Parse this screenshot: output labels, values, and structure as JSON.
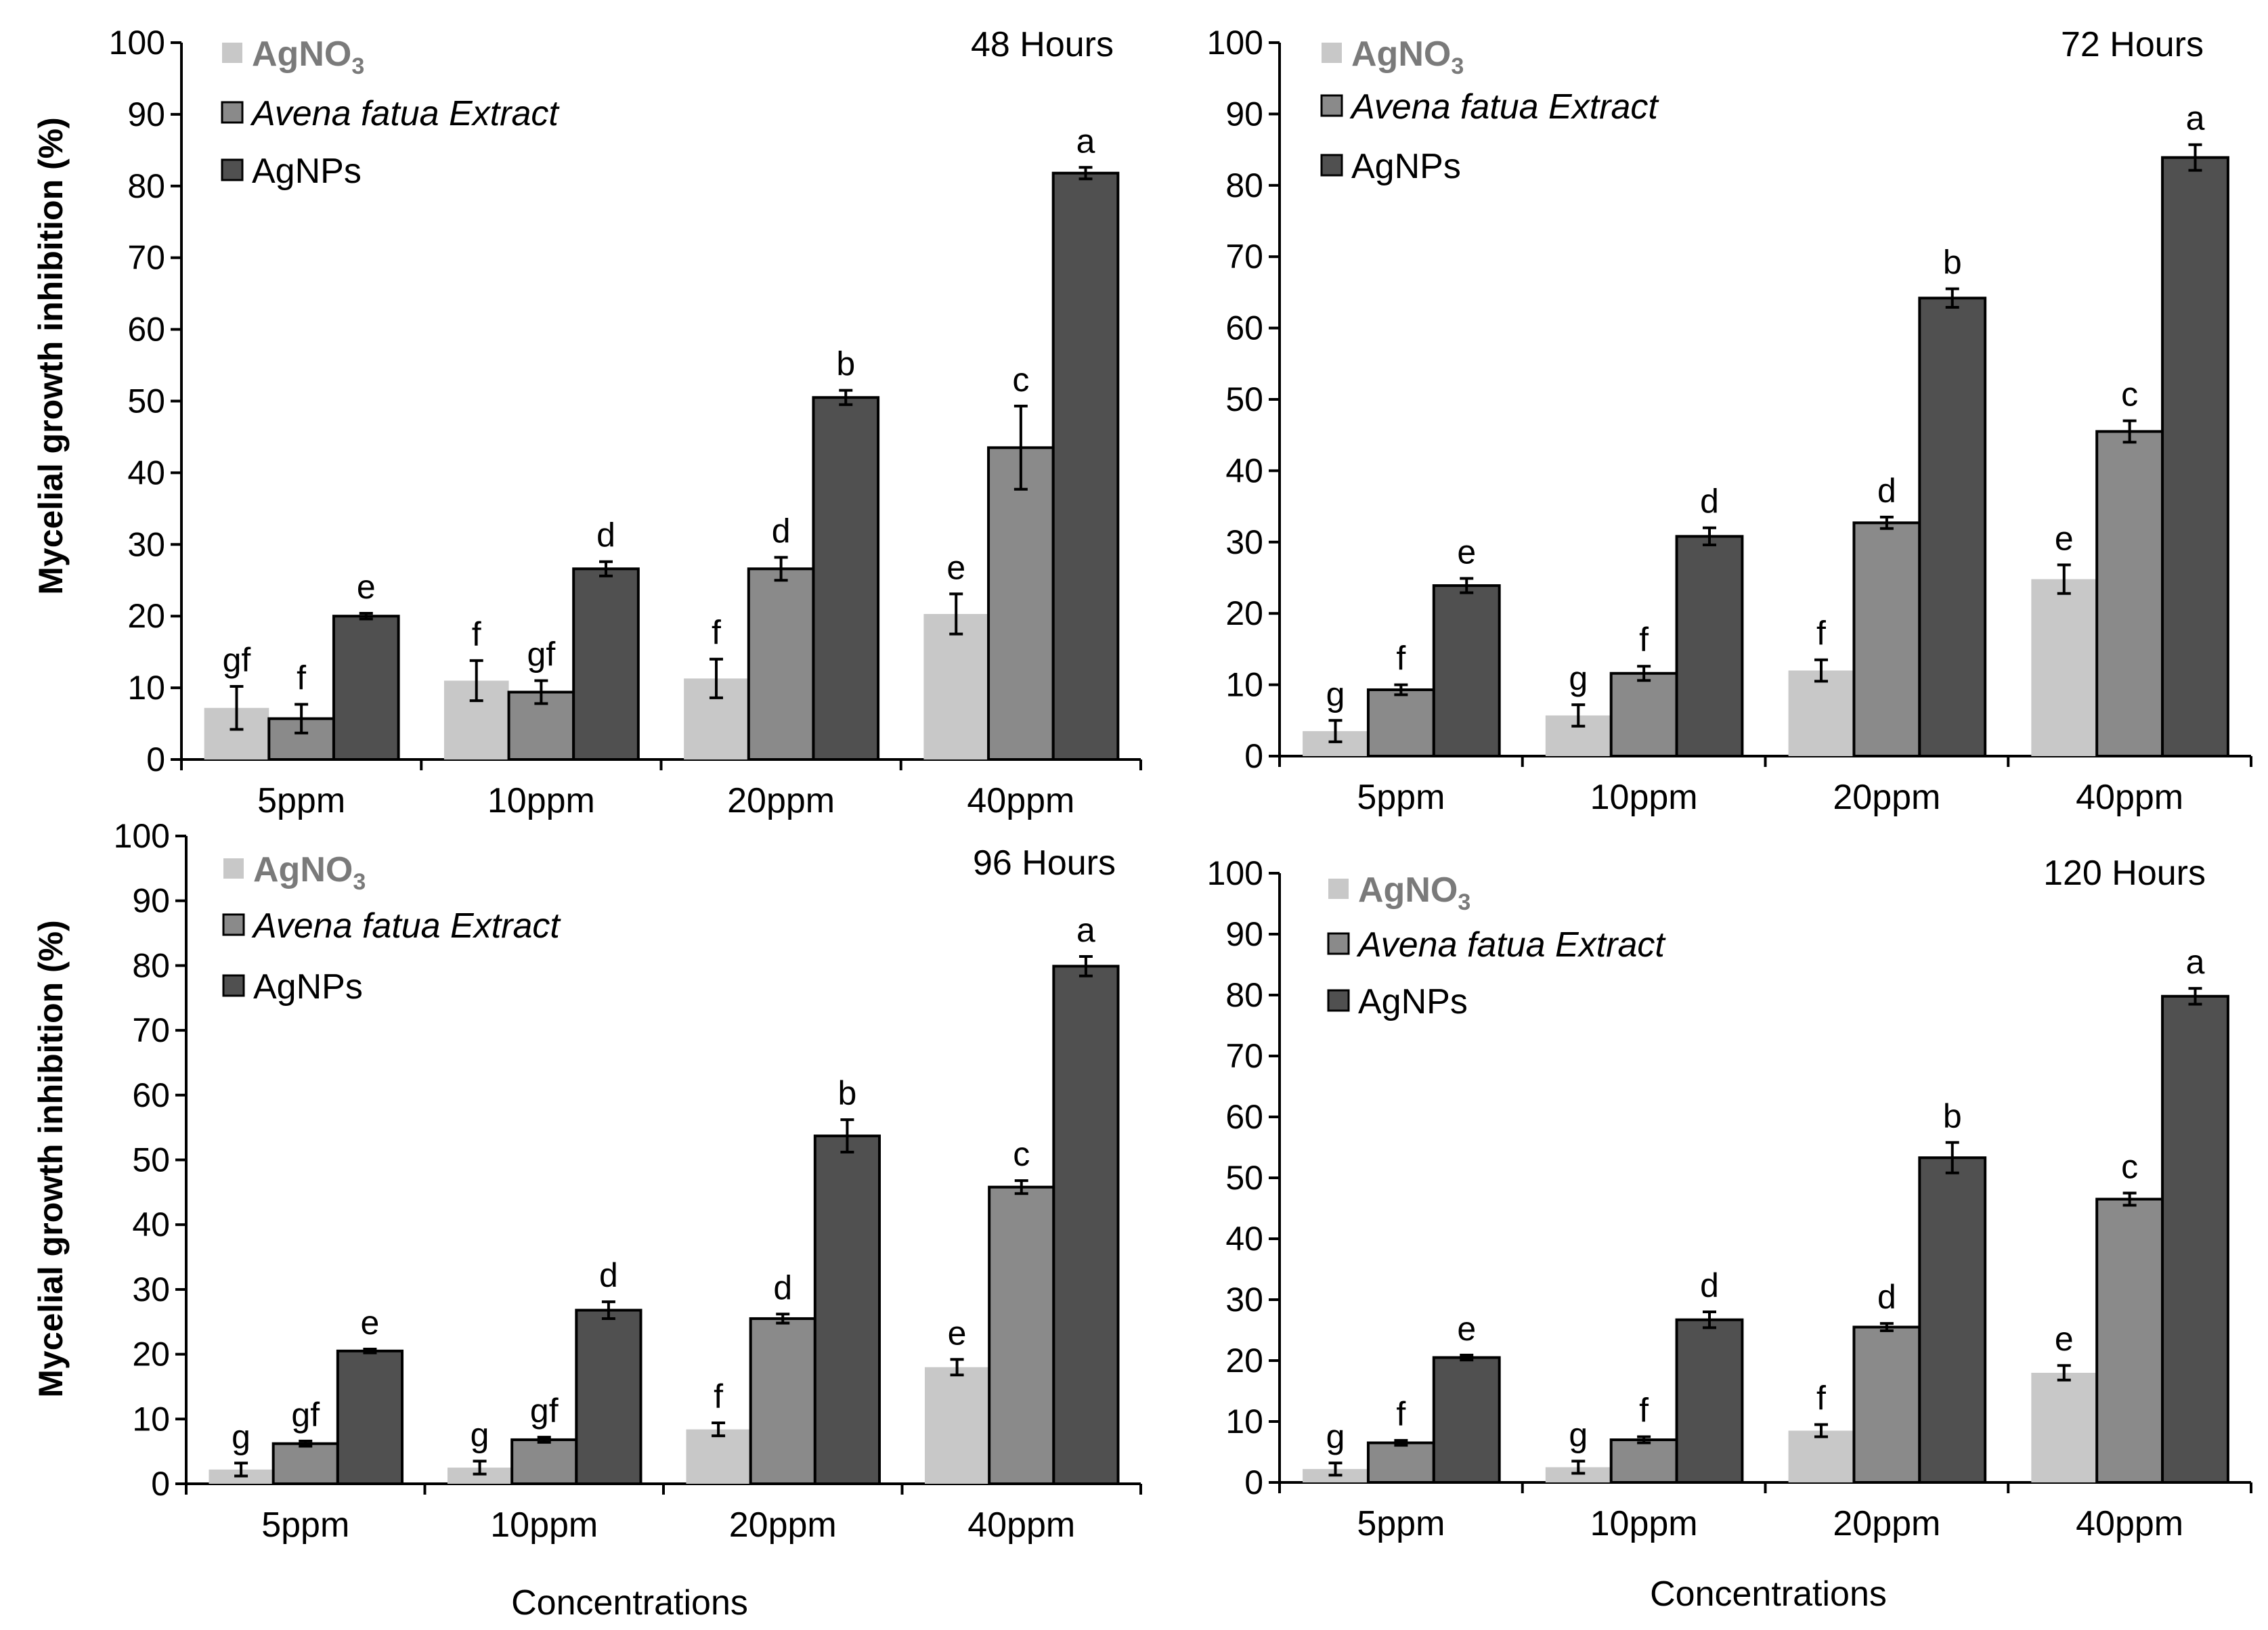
{
  "figure": {
    "ylabel": "Mycelial growth inhibition (%)",
    "xlabel": "Concentrations",
    "legend": [
      {
        "base": "AgNO",
        "sub": "3",
        "color": "#c8c8c8",
        "style": "bold-gray"
      },
      {
        "text": "Avena fatua Extract",
        "color": "#8a8a8a",
        "style": "italic"
      },
      {
        "text": "AgNPs",
        "color": "#505050",
        "style": "normal"
      }
    ]
  },
  "chart_data": [
    {
      "type": "bar",
      "title": "48 Hours",
      "categories": [
        "5ppm",
        "10ppm",
        "20ppm",
        "40ppm"
      ],
      "ylim": [
        0,
        100
      ],
      "yticks": [
        0,
        10,
        20,
        30,
        40,
        50,
        60,
        70,
        80,
        90,
        100
      ],
      "series": [
        {
          "name": "AgNO3",
          "color": "#c8c8c8",
          "values": [
            7.2,
            11.0,
            11.3,
            20.3
          ],
          "err": [
            3.0,
            2.8,
            2.7,
            2.8
          ],
          "labels": [
            "gf",
            "f",
            "f",
            "e"
          ]
        },
        {
          "name": "Avena fatua Extract",
          "color": "#8a8a8a",
          "values": [
            5.7,
            9.4,
            26.6,
            43.5
          ],
          "err": [
            2.0,
            1.6,
            1.6,
            5.8
          ],
          "labels": [
            "f",
            "gf",
            "d",
            "c"
          ]
        },
        {
          "name": "AgNPs",
          "color": "#505050",
          "values": [
            20.0,
            26.6,
            50.5,
            81.8
          ],
          "err": [
            0.4,
            1.0,
            1.0,
            0.8
          ],
          "labels": [
            "e",
            "d",
            "b",
            "a"
          ]
        }
      ]
    },
    {
      "type": "bar",
      "title": "72 Hours",
      "categories": [
        "5ppm",
        "10ppm",
        "20ppm",
        "40ppm"
      ],
      "ylim": [
        0,
        100
      ],
      "yticks": [
        0,
        10,
        20,
        30,
        40,
        50,
        60,
        70,
        80,
        90,
        100
      ],
      "series": [
        {
          "name": "AgNO3",
          "color": "#c8c8c8",
          "values": [
            3.5,
            5.7,
            12.0,
            24.8
          ],
          "err": [
            1.5,
            1.5,
            1.5,
            2.0
          ],
          "labels": [
            "g",
            "g",
            "f",
            "e"
          ]
        },
        {
          "name": "Avena fatua Extract",
          "color": "#8a8a8a",
          "values": [
            9.3,
            11.6,
            32.7,
            45.5
          ],
          "err": [
            0.7,
            1.0,
            0.8,
            1.5
          ],
          "labels": [
            "f",
            "f",
            "d",
            "c"
          ]
        },
        {
          "name": "AgNPs",
          "color": "#505050",
          "values": [
            23.9,
            30.8,
            64.2,
            83.9
          ],
          "err": [
            1.0,
            1.2,
            1.3,
            1.8
          ],
          "labels": [
            "e",
            "d",
            "b",
            "a"
          ]
        }
      ]
    },
    {
      "type": "bar",
      "title": "96 Hours",
      "categories": [
        "5ppm",
        "10ppm",
        "20ppm",
        "40ppm"
      ],
      "ylim": [
        0,
        100
      ],
      "yticks": [
        0,
        10,
        20,
        30,
        40,
        50,
        60,
        70,
        80,
        90,
        100
      ],
      "series": [
        {
          "name": "AgNO3",
          "color": "#c8c8c8",
          "values": [
            2.2,
            2.5,
            8.4,
            18.0
          ],
          "err": [
            1.0,
            1.0,
            1.0,
            1.2
          ],
          "labels": [
            "g",
            "g",
            "f",
            "e"
          ]
        },
        {
          "name": "Avena fatua Extract",
          "color": "#8a8a8a",
          "values": [
            6.2,
            6.8,
            25.5,
            45.8
          ],
          "err": [
            0.4,
            0.4,
            0.7,
            1.0
          ],
          "labels": [
            "gf",
            "gf",
            "d",
            "c"
          ]
        },
        {
          "name": "AgNPs",
          "color": "#505050",
          "values": [
            20.5,
            26.8,
            53.7,
            79.9
          ],
          "err": [
            0.3,
            1.3,
            2.5,
            1.5
          ],
          "labels": [
            "e",
            "d",
            "b",
            "a"
          ]
        }
      ]
    },
    {
      "type": "bar",
      "title": "120 Hours",
      "categories": [
        "5ppm",
        "10ppm",
        "20ppm",
        "40ppm"
      ],
      "ylim": [
        0,
        100
      ],
      "yticks": [
        0,
        10,
        20,
        30,
        40,
        50,
        60,
        70,
        80,
        90,
        100
      ],
      "series": [
        {
          "name": "AgNO3",
          "color": "#c8c8c8",
          "values": [
            2.2,
            2.5,
            8.5,
            18.0
          ],
          "err": [
            1.0,
            1.0,
            1.0,
            1.2
          ],
          "labels": [
            "g",
            "g",
            "f",
            "e"
          ]
        },
        {
          "name": "Avena fatua Extract",
          "color": "#8a8a8a",
          "values": [
            6.5,
            7.0,
            25.5,
            46.5
          ],
          "err": [
            0.4,
            0.5,
            0.6,
            1.0
          ],
          "labels": [
            "f",
            "f",
            "d",
            "c"
          ]
        },
        {
          "name": "AgNPs",
          "color": "#505050",
          "values": [
            20.5,
            26.7,
            53.3,
            79.8
          ],
          "err": [
            0.4,
            1.3,
            2.5,
            1.3
          ],
          "labels": [
            "e",
            "d",
            "b",
            "a"
          ]
        }
      ]
    }
  ]
}
